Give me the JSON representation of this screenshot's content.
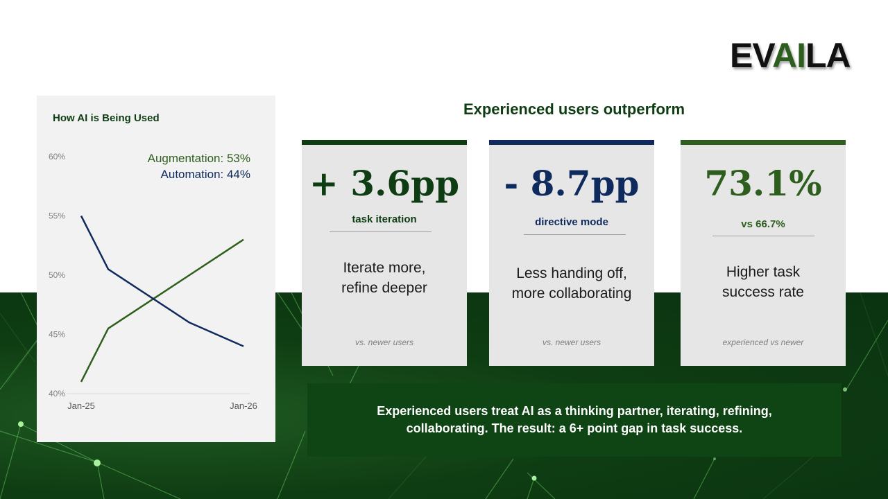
{
  "logo": {
    "text_left": "EV",
    "text_accent": "AI",
    "text_right": "LA"
  },
  "heading": "Experienced users outperform",
  "chart_data": {
    "type": "line",
    "title": "How AI is Being Used",
    "x": [
      "Jan-25",
      "Mar-25",
      "Sep-25",
      "Jan-26"
    ],
    "x_tick_labels": [
      "Jan-25",
      "Jan-26"
    ],
    "y_tick_labels": [
      "60%",
      "55%",
      "50%",
      "45%",
      "40%"
    ],
    "ylim": [
      40,
      60
    ],
    "series": [
      {
        "name": "Augmentation",
        "values": [
          41,
          45.5,
          50,
          53
        ],
        "color": "#2e5e1e",
        "legend": "Augmentation: 53%"
      },
      {
        "name": "Automation",
        "values": [
          55,
          50.5,
          46,
          44
        ],
        "color": "#0f2a5c",
        "legend": "Automation: 44%"
      }
    ],
    "legend_position": "top-right",
    "grid": false
  },
  "cards": [
    {
      "value": "+ 3.6pp",
      "label": "task iteration",
      "desc_line1": "Iterate more,",
      "desc_line2": "refine deeper",
      "foot": "vs. newer users",
      "color": "#0f3d13",
      "bar_color": "#0f3d13"
    },
    {
      "value": "- 8.7pp",
      "label": "directive mode",
      "desc_line1": "Less handing off,",
      "desc_line2": "more collaborating",
      "foot": "vs. newer users",
      "color": "#0f2a5c",
      "bar_color": "#0f2a5c"
    },
    {
      "value": "73.1%",
      "label": "vs 66.7%",
      "desc_line1": "Higher task",
      "desc_line2": "success rate",
      "foot": "experienced vs newer",
      "color": "#2e5e1e",
      "bar_color": "#2e5e1e"
    }
  ],
  "summary": {
    "line1": "Experienced users treat AI as a thinking partner, iterating, refining,",
    "line2": "collaborating. The result: a 6+ point gap in task success."
  }
}
